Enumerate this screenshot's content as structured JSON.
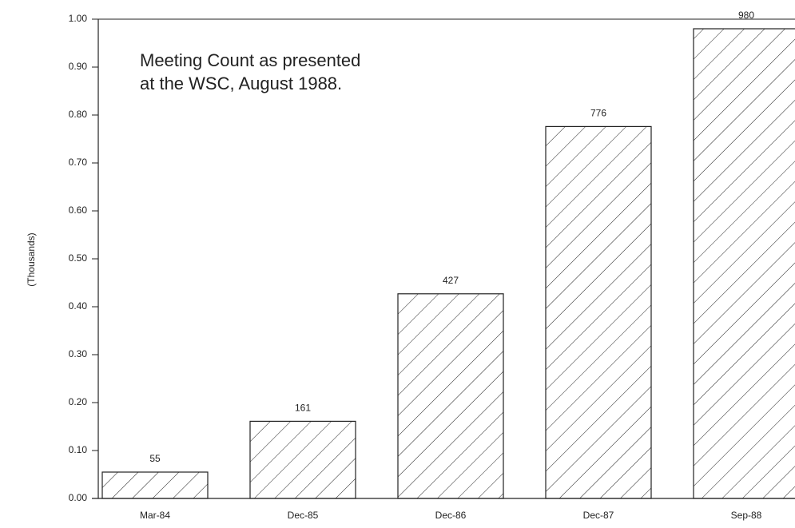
{
  "chart_data": {
    "type": "bar",
    "annotations": [
      "Meeting Count as presented",
      "at the WSC, August 1988."
    ],
    "ylabel": "(Thousands)",
    "categories": [
      "Mar-84",
      "Dec-85",
      "Dec-86",
      "Dec-87",
      "Sep-88"
    ],
    "values": [
      0.055,
      0.161,
      0.427,
      0.776,
      0.98
    ],
    "value_labels": [
      "55",
      "161",
      "427",
      "776",
      "980"
    ],
    "color": "#222222",
    "ylim": [
      0,
      1
    ],
    "yticks": [
      {
        "value": 0,
        "label": "0.00"
      },
      {
        "value": 0.1,
        "label": "0.10"
      },
      {
        "value": 0.2,
        "label": "0.20"
      },
      {
        "value": 0.3,
        "label": "0.30"
      },
      {
        "value": 0.4,
        "label": "0.40"
      },
      {
        "value": 0.5,
        "label": "0.50"
      },
      {
        "value": 0.6,
        "label": "0.60"
      },
      {
        "value": 0.7,
        "label": "0.70"
      },
      {
        "value": 0.8,
        "label": "0.80"
      },
      {
        "value": 0.9,
        "label": "0.90"
      },
      {
        "value": 1,
        "label": "1.00"
      }
    ]
  }
}
